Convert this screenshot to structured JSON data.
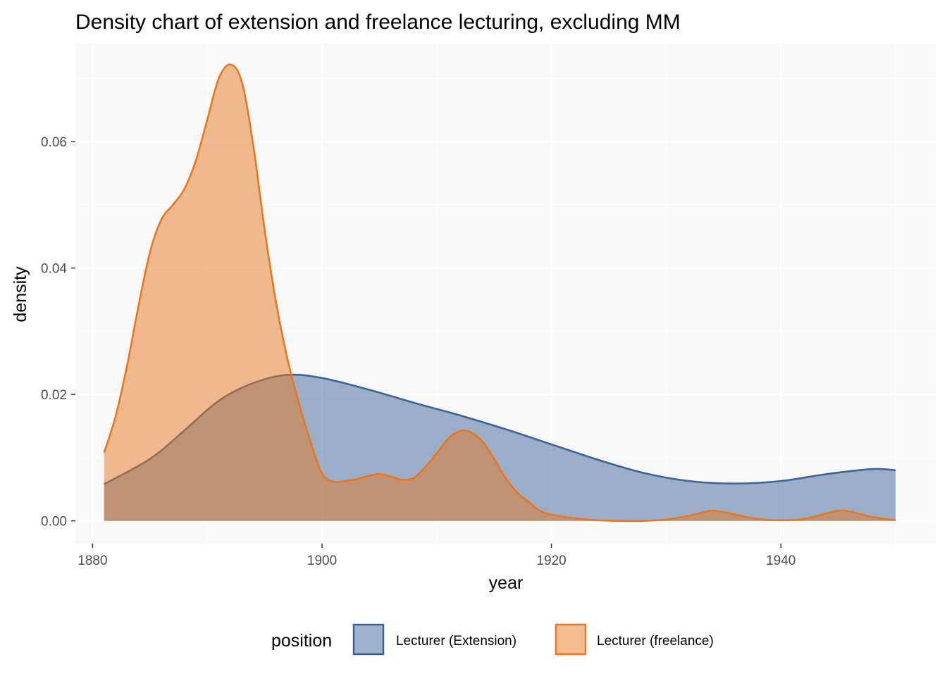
{
  "chart_data": {
    "type": "area",
    "subtype": "density",
    "title": "Density chart of extension and freelance lecturing, excluding MM",
    "xlabel": "year",
    "ylabel": "density",
    "xlim": [
      1878.5,
      1953.5
    ],
    "ylim": [
      -0.0036,
      0.0755
    ],
    "x_ticks": [
      1880,
      1900,
      1920,
      1940
    ],
    "x_tick_labels": [
      "1880",
      "1900",
      "1920",
      "1940"
    ],
    "y_ticks": [
      0,
      0.02,
      0.04,
      0.06
    ],
    "y_tick_labels": [
      "0.00",
      "0.02",
      "0.04",
      "0.06"
    ],
    "grid": true,
    "legend": {
      "title": "position",
      "placement": "bottom"
    },
    "series": [
      {
        "name": "Lecturer (Extension)",
        "color": "#3E6397",
        "fill_alpha": 0.5,
        "x": [
          1881,
          1885,
          1888,
          1891,
          1894,
          1897,
          1900,
          1904,
          1908,
          1912,
          1916,
          1920,
          1924,
          1928,
          1932,
          1936,
          1940,
          1944,
          1948,
          1950
        ],
        "y": [
          0.0058,
          0.0098,
          0.0143,
          0.019,
          0.0218,
          0.0231,
          0.0226,
          0.0208,
          0.0187,
          0.0167,
          0.0145,
          0.0121,
          0.0097,
          0.0076,
          0.0063,
          0.0059,
          0.0063,
          0.0074,
          0.0082,
          0.008
        ]
      },
      {
        "name": "Lecturer (freelance)",
        "color": "#E87722",
        "fill_alpha": 0.5,
        "x": [
          1881,
          1882,
          1883,
          1884,
          1885,
          1886,
          1887,
          1888,
          1889,
          1890,
          1891,
          1892,
          1893,
          1894,
          1895,
          1896,
          1897,
          1898,
          1899,
          1900,
          1901,
          1902,
          1903,
          1904,
          1905,
          1906,
          1907,
          1908,
          1909,
          1910,
          1911,
          1912,
          1913,
          1914,
          1915,
          1916,
          1917,
          1918,
          1919,
          1920,
          1922,
          1924,
          1926,
          1928,
          1930,
          1932,
          1934,
          1936,
          1938,
          1940,
          1942,
          1944,
          1945,
          1946,
          1948,
          1950
        ],
        "y": [
          0.0108,
          0.0165,
          0.0245,
          0.034,
          0.0425,
          0.0477,
          0.05,
          0.0525,
          0.057,
          0.0635,
          0.07,
          0.0722,
          0.0695,
          0.0595,
          0.046,
          0.0345,
          0.0255,
          0.0185,
          0.0125,
          0.0075,
          0.0062,
          0.0063,
          0.0066,
          0.0071,
          0.0074,
          0.007,
          0.0065,
          0.0068,
          0.0085,
          0.0107,
          0.013,
          0.0142,
          0.014,
          0.0125,
          0.0098,
          0.0068,
          0.0045,
          0.003,
          0.0016,
          0.001,
          0.0004,
          0.0001,
          0.0,
          0.0,
          0.0002,
          0.0008,
          0.0016,
          0.001,
          0.0003,
          0.0001,
          0.0003,
          0.0012,
          0.0016,
          0.0015,
          0.0006,
          0.0001
        ]
      }
    ]
  }
}
